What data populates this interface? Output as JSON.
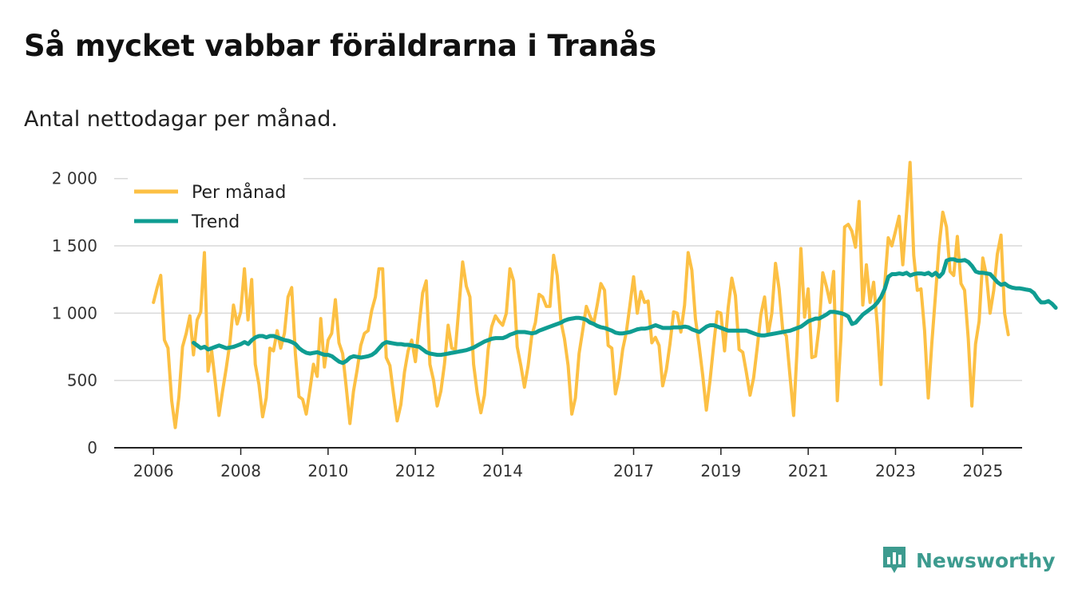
{
  "title": "Så mycket vabbar föräldrarna i Tranås",
  "subtitle": "Antal nettodagar per månad.",
  "brand": {
    "name": "Newsworthy",
    "color": "#3d9b8f"
  },
  "colors": {
    "monthly": "#fcc044",
    "trend": "#0f9d92",
    "grid": "#d9d9d9",
    "axis": "#222222"
  },
  "chart_data": {
    "type": "line",
    "title": "Så mycket vabbar föräldrarna i Tranås",
    "subtitle": "Antal nettodagar per månad.",
    "xlabel": "",
    "ylabel": "",
    "ylim": [
      0,
      2200
    ],
    "xlim": [
      2005.1,
      2025.9
    ],
    "yticks": [
      0,
      500,
      1000,
      1500,
      2000
    ],
    "ytick_labels": [
      "0",
      "500",
      "1 000",
      "1 500",
      "2 000"
    ],
    "xticks": [
      2006,
      2008,
      2010,
      2012,
      2014,
      2017,
      2019,
      2021,
      2023,
      2025
    ],
    "xtick_labels": [
      "2006",
      "2008",
      "2010",
      "2012",
      "2014",
      "2017",
      "2019",
      "2021",
      "2023",
      "2025"
    ],
    "grid": true,
    "legend": {
      "position": "top-left",
      "entries": [
        "Per månad",
        "Trend"
      ]
    },
    "series": [
      {
        "name": "Per månad",
        "start": 2006.0,
        "step_months": 1,
        "values": [
          1080,
          1190,
          1280,
          800,
          740,
          350,
          150,
          380,
          750,
          850,
          980,
          690,
          950,
          1010,
          1450,
          570,
          720,
          490,
          240,
          420,
          590,
          780,
          1060,
          920,
          1010,
          1330,
          950,
          1250,
          620,
          470,
          230,
          370,
          740,
          720,
          870,
          740,
          850,
          1120,
          1190,
          700,
          380,
          360,
          250,
          430,
          620,
          530,
          960,
          600,
          800,
          850,
          1100,
          780,
          700,
          450,
          180,
          420,
          580,
          760,
          850,
          870,
          1020,
          1120,
          1330,
          1330,
          670,
          610,
          400,
          200,
          320,
          560,
          720,
          800,
          640,
          900,
          1150,
          1240,
          620,
          500,
          310,
          420,
          620,
          910,
          740,
          730,
          1050,
          1380,
          1200,
          1120,
          620,
          410,
          260,
          390,
          730,
          900,
          980,
          940,
          910,
          1000,
          1330,
          1240,
          750,
          610,
          450,
          610,
          830,
          930,
          1140,
          1120,
          1050,
          1050,
          1430,
          1280,
          940,
          810,
          610,
          250,
          370,
          700,
          870,
          1050,
          980,
          920,
          1060,
          1220,
          1170,
          760,
          740,
          400,
          520,
          730,
          860,
          1060,
          1270,
          1000,
          1160,
          1080,
          1090,
          780,
          820,
          760,
          460,
          580,
          770,
          1010,
          1000,
          860,
          1060,
          1450,
          1320,
          960,
          760,
          540,
          280,
          500,
          760,
          1010,
          1000,
          720,
          1040,
          1260,
          1130,
          730,
          710,
          560,
          390,
          520,
          750,
          990,
          1120,
          840,
          1000,
          1370,
          1180,
          870,
          830,
          530,
          240,
          760,
          1480,
          970,
          1180,
          670,
          680,
          900,
          1300,
          1200,
          1080,
          1310,
          350,
          810,
          1640,
          1660,
          1610,
          1490,
          1830,
          1060,
          1360,
          1080,
          1230,
          910,
          470,
          1200,
          1560,
          1500,
          1610,
          1720,
          1360,
          1730,
          2120,
          1430,
          1170,
          1180,
          870,
          370,
          780,
          1140,
          1500,
          1750,
          1640,
          1310,
          1280,
          1570,
          1220,
          1170,
          810,
          310,
          770,
          940,
          1410,
          1280,
          1000,
          1170,
          1440,
          1580,
          1000,
          840
        ]
      },
      {
        "name": "Trend",
        "start": 2006.92,
        "step_months": 1,
        "values": [
          780,
          760,
          740,
          750,
          730,
          740,
          750,
          760,
          750,
          740,
          745,
          750,
          760,
          770,
          785,
          770,
          800,
          820,
          830,
          830,
          820,
          830,
          830,
          820,
          810,
          800,
          795,
          785,
          770,
          740,
          720,
          705,
          700,
          705,
          710,
          700,
          690,
          690,
          680,
          660,
          640,
          630,
          645,
          670,
          680,
          675,
          670,
          675,
          680,
          690,
          710,
          740,
          770,
          785,
          780,
          775,
          770,
          770,
          765,
          765,
          760,
          755,
          750,
          730,
          710,
          700,
          695,
          690,
          690,
          695,
          700,
          705,
          710,
          715,
          720,
          725,
          735,
          745,
          760,
          775,
          790,
          800,
          810,
          815,
          815,
          815,
          825,
          840,
          850,
          860,
          860,
          860,
          855,
          850,
          855,
          870,
          880,
          890,
          900,
          910,
          920,
          930,
          945,
          955,
          960,
          965,
          965,
          960,
          950,
          930,
          920,
          905,
          895,
          890,
          880,
          870,
          855,
          850,
          850,
          855,
          860,
          870,
          880,
          885,
          885,
          890,
          900,
          910,
          900,
          890,
          890,
          890,
          895,
          895,
          895,
          900,
          895,
          880,
          870,
          860,
          880,
          900,
          910,
          910,
          900,
          890,
          880,
          870,
          870,
          870,
          870,
          870,
          870,
          860,
          850,
          840,
          835,
          835,
          840,
          845,
          850,
          855,
          860,
          865,
          870,
          880,
          890,
          900,
          920,
          940,
          950,
          960,
          960,
          975,
          990,
          1010,
          1010,
          1005,
          1000,
          990,
          975,
          920,
          930,
          960,
          990,
          1010,
          1030,
          1050,
          1080,
          1120,
          1180,
          1270,
          1290,
          1290,
          1295,
          1290,
          1300,
          1280,
          1290,
          1295,
          1295,
          1290,
          1300,
          1280,
          1300,
          1270,
          1300,
          1390,
          1400,
          1400,
          1390,
          1390,
          1395,
          1380,
          1350,
          1310,
          1300,
          1300,
          1295,
          1290,
          1260,
          1230,
          1210,
          1220,
          1200,
          1190,
          1185,
          1185,
          1180,
          1175,
          1170,
          1150,
          1110,
          1080,
          1080,
          1090,
          1070,
          1040
        ]
      }
    ]
  }
}
